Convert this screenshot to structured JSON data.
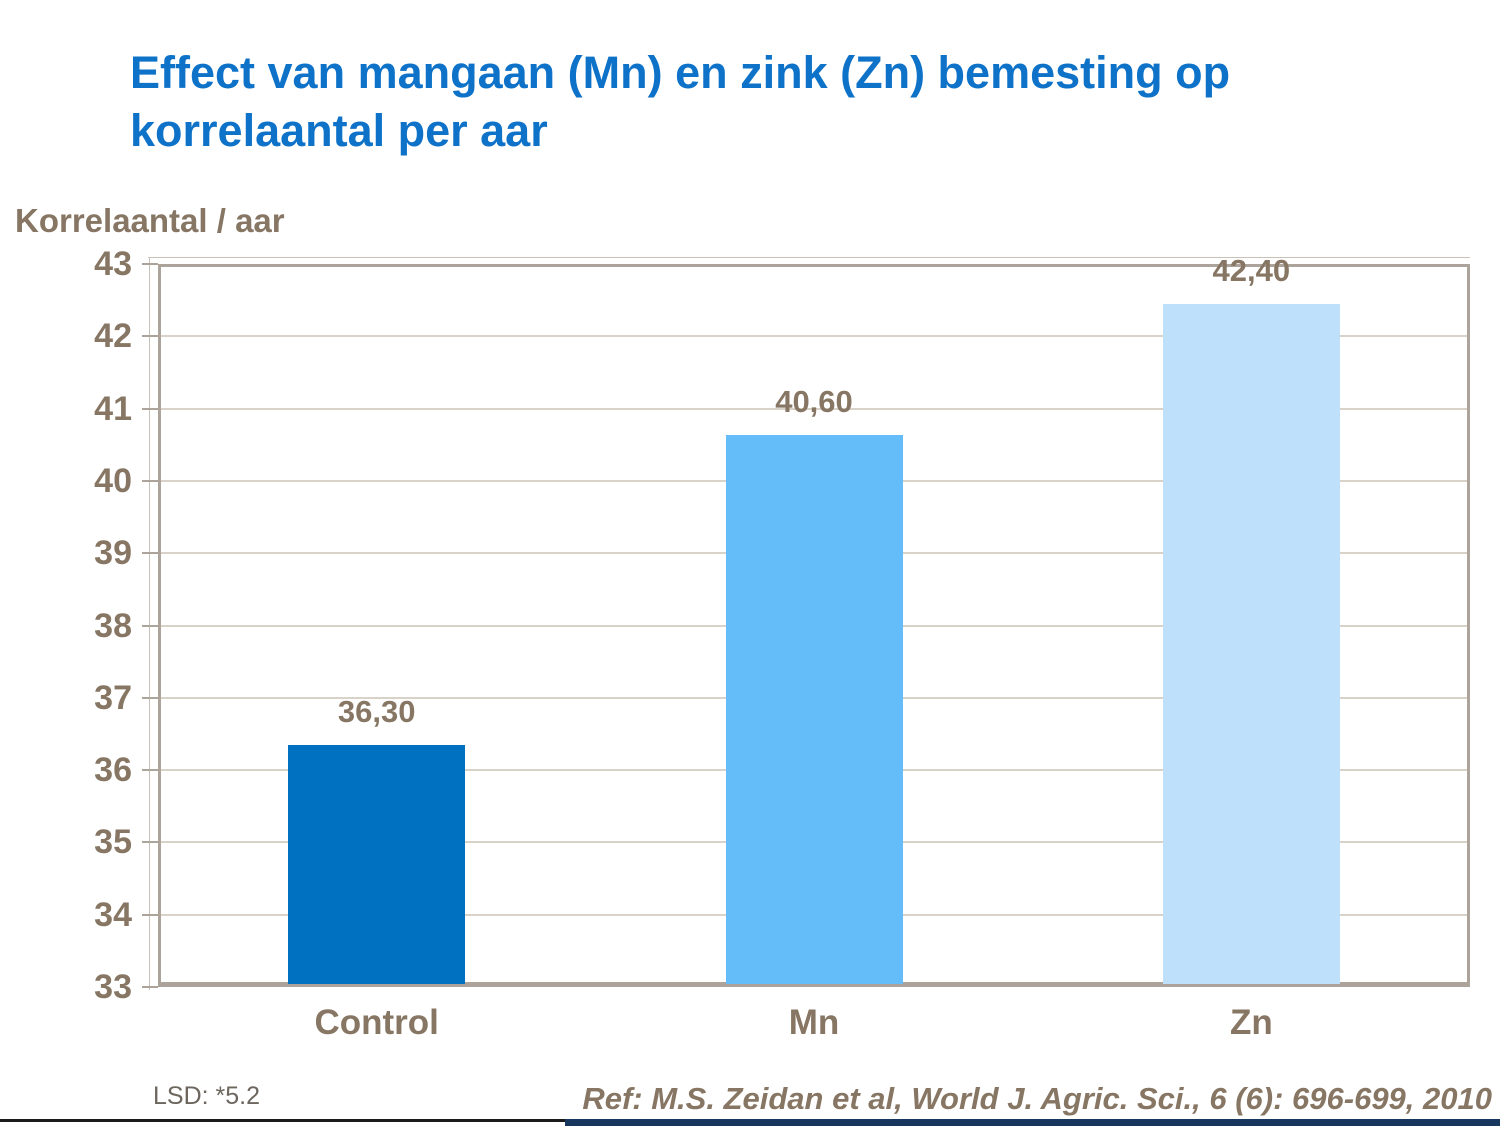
{
  "slide": {
    "title_line1": "Effect van mangaan (Mn) en zink (Zn) bemesting op",
    "title_line2": "korrelaantal per aar",
    "footnote_lsd": "LSD: *5.2",
    "reference": "Ref: M.S. Zeidan et al, World J. Agric. Sci., 6 (6): 696-699, 2010"
  },
  "colors": {
    "title_blue": "#0d72c8",
    "text_brown": "#867663",
    "axis_frame": "#aca49b",
    "gridline": "#d9d2c9",
    "bottom_bar_navy": "#17375e"
  },
  "chart_data": {
    "type": "bar",
    "title": "Effect van mangaan (Mn) en zink (Zn) bemesting op korrelaantal per aar",
    "ylabel": "Korrelaantal / aar",
    "xlabel": "",
    "categories": [
      "Control",
      "Mn",
      "Zn"
    ],
    "values": [
      36.3,
      40.6,
      42.4
    ],
    "value_labels": [
      "36,30",
      "40,60",
      "42,40"
    ],
    "bar_colors": [
      "#0070c0",
      "#64bdf8",
      "#bee0fb"
    ],
    "ylim": [
      33,
      43
    ],
    "yticks": [
      33,
      34,
      35,
      36,
      37,
      38,
      39,
      40,
      41,
      42,
      43
    ],
    "grid": true,
    "legend": false
  }
}
